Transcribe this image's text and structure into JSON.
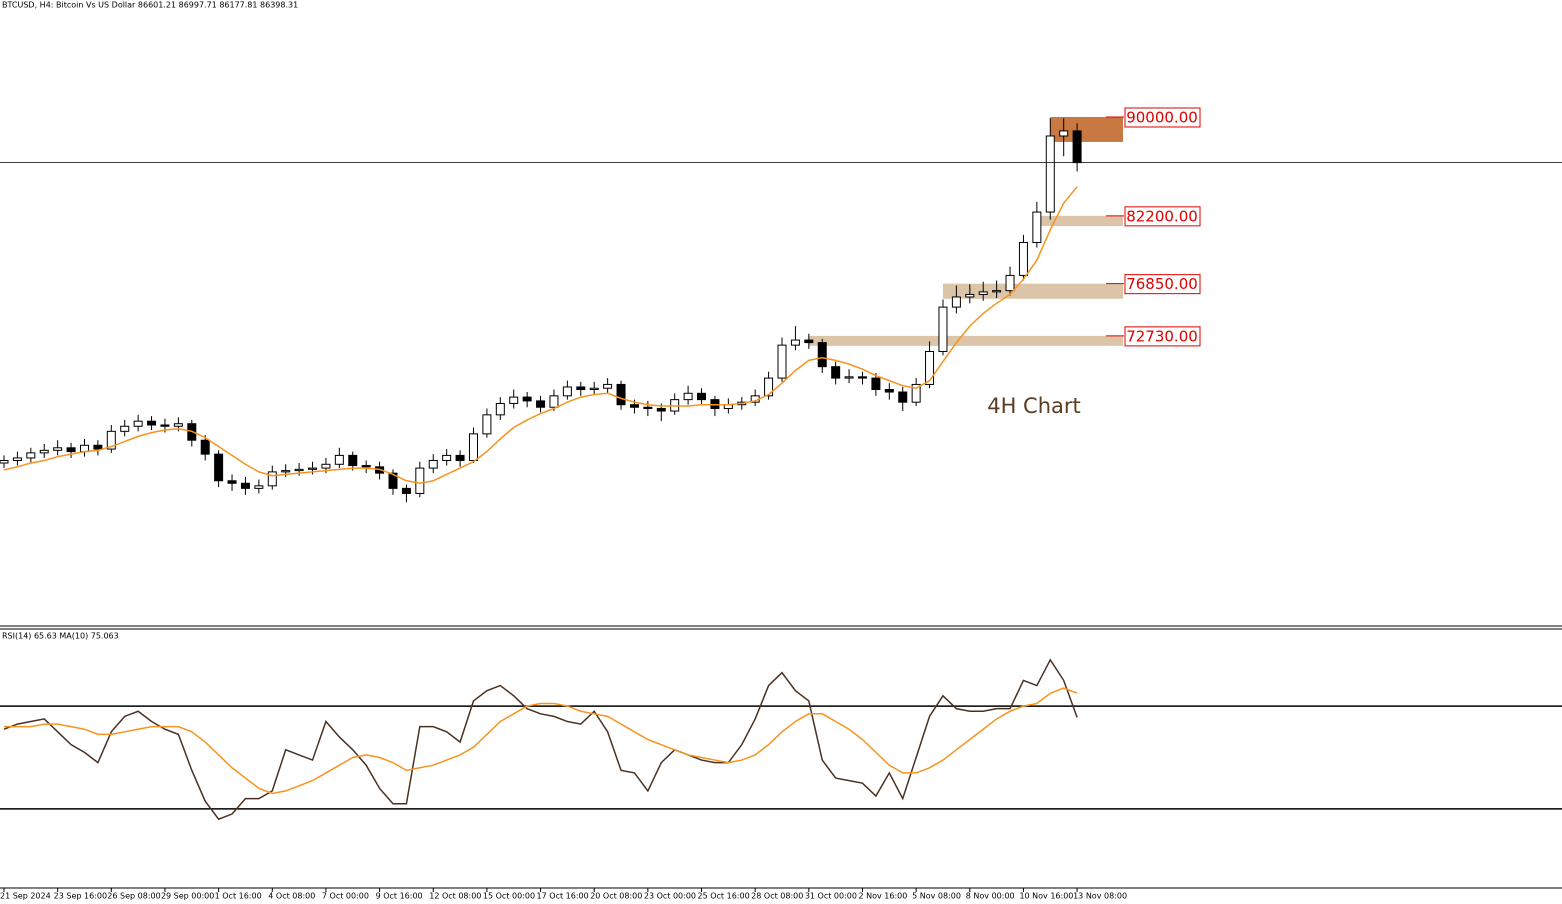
{
  "chart_data": [
    {
      "type": "candlestick",
      "title": "BTCUSD, H4:  Bitcoin Vs US Dollar  86601.21 86997.71 86177.81 86398.31",
      "annotation": "4H Chart",
      "candle_color": "#000000",
      "xlim": [
        0,
        116
      ],
      "xticks": [
        {
          "value": 0,
          "label": "21 Sep 2024"
        },
        {
          "value": 4,
          "label": "23 Sep 16:00"
        },
        {
          "value": 8,
          "label": "26 Sep 08:00"
        },
        {
          "value": 12,
          "label": "29 Sep 00:00"
        },
        {
          "value": 16,
          "label": "1 Oct 16:00"
        },
        {
          "value": 20,
          "label": "4 Oct 08:00"
        },
        {
          "value": 24,
          "label": "7 Oct 00:00"
        },
        {
          "value": 28,
          "label": "9 Oct 16:00"
        },
        {
          "value": 32,
          "label": "12 Oct 08:00"
        },
        {
          "value": 36,
          "label": "15 Oct 00:00"
        },
        {
          "value": 40,
          "label": "17 Oct 16:00"
        },
        {
          "value": 44,
          "label": "20 Oct 08:00"
        },
        {
          "value": 48,
          "label": "23 Oct 00:00"
        },
        {
          "value": 52,
          "label": "25 Oct 16:00"
        },
        {
          "value": 56,
          "label": "28 Oct 08:00"
        },
        {
          "value": 60,
          "label": "31 Oct 00:00"
        },
        {
          "value": 64,
          "label": "2 Nov 16:00"
        },
        {
          "value": 68,
          "label": "5 Nov 08:00"
        },
        {
          "value": 72,
          "label": "8 Nov 00:00"
        },
        {
          "value": 76,
          "label": "10 Nov 16:00"
        },
        {
          "value": 80,
          "label": "13 Nov 08:00"
        }
      ],
      "ylim": [
        49920,
        98440
      ],
      "ohlc": [
        [
          62700,
          63300,
          62300,
          62900
        ],
        [
          62900,
          63600,
          62500,
          63100
        ],
        [
          63100,
          63900,
          62700,
          63500
        ],
        [
          63500,
          64200,
          63100,
          63700
        ],
        [
          63700,
          64500,
          63300,
          63900
        ],
        [
          63900,
          64300,
          63100,
          63600
        ],
        [
          63600,
          64600,
          63200,
          64100
        ],
        [
          64100,
          64500,
          63300,
          63800
        ],
        [
          63800,
          65700,
          63500,
          65200
        ],
        [
          65200,
          66100,
          64800,
          65600
        ],
        [
          65600,
          66500,
          65200,
          66000
        ],
        [
          66000,
          66400,
          65300,
          65700
        ],
        [
          65700,
          66200,
          65100,
          65600
        ],
        [
          65600,
          66300,
          65200,
          65800
        ],
        [
          65800,
          66100,
          64000,
          64500
        ],
        [
          64500,
          64900,
          62900,
          63400
        ],
        [
          63400,
          63700,
          60800,
          61300
        ],
        [
          61300,
          61800,
          60500,
          61100
        ],
        [
          61100,
          61600,
          60200,
          60700
        ],
        [
          60700,
          61400,
          60300,
          60900
        ],
        [
          60900,
          62500,
          60600,
          62000
        ],
        [
          62000,
          62600,
          61600,
          62100
        ],
        [
          62100,
          62700,
          61700,
          62200
        ],
        [
          62200,
          62800,
          61800,
          62300
        ],
        [
          62300,
          63100,
          61900,
          62600
        ],
        [
          62600,
          63900,
          62300,
          63300
        ],
        [
          63300,
          63600,
          62100,
          62500
        ],
        [
          62500,
          62900,
          61900,
          62400
        ],
        [
          62400,
          62800,
          61400,
          61900
        ],
        [
          61900,
          62200,
          60200,
          60700
        ],
        [
          60700,
          61000,
          59600,
          60300
        ],
        [
          60300,
          62800,
          60000,
          62300
        ],
        [
          62300,
          63400,
          61900,
          62900
        ],
        [
          62900,
          63800,
          62500,
          63300
        ],
        [
          63300,
          63700,
          62400,
          62900
        ],
        [
          62900,
          65500,
          62700,
          65000
        ],
        [
          65000,
          67000,
          64700,
          66500
        ],
        [
          66500,
          67900,
          66100,
          67400
        ],
        [
          67400,
          68500,
          67000,
          67900
        ],
        [
          67900,
          68300,
          67100,
          67600
        ],
        [
          67600,
          68000,
          66700,
          67100
        ],
        [
          67100,
          68500,
          66800,
          68000
        ],
        [
          68000,
          69200,
          67700,
          68700
        ],
        [
          68700,
          69100,
          68000,
          68500
        ],
        [
          68500,
          69100,
          68100,
          68600
        ],
        [
          68600,
          69400,
          68200,
          68900
        ],
        [
          68900,
          69200,
          66900,
          67300
        ],
        [
          67300,
          67700,
          66600,
          67100
        ],
        [
          67100,
          67600,
          66400,
          67000
        ],
        [
          67000,
          67400,
          66000,
          66800
        ],
        [
          66800,
          68200,
          66500,
          67700
        ],
        [
          67700,
          68800,
          67300,
          68200
        ],
        [
          68200,
          68600,
          67300,
          67700
        ],
        [
          67700,
          68000,
          66400,
          67000
        ],
        [
          67000,
          67800,
          66600,
          67300
        ],
        [
          67300,
          67900,
          66900,
          67500
        ],
        [
          67500,
          68500,
          67200,
          68000
        ],
        [
          68000,
          69900,
          67700,
          69400
        ],
        [
          69400,
          72600,
          69100,
          72000
        ],
        [
          72000,
          73500,
          71600,
          72400
        ],
        [
          72400,
          72900,
          71700,
          72200
        ],
        [
          72200,
          72500,
          69800,
          70300
        ],
        [
          70300,
          70700,
          68900,
          69400
        ],
        [
          69400,
          70100,
          69000,
          69500
        ],
        [
          69500,
          69900,
          68900,
          69400
        ],
        [
          69400,
          69800,
          68000,
          68500
        ],
        [
          68500,
          69000,
          67700,
          68300
        ],
        [
          68300,
          68700,
          66800,
          67500
        ],
        [
          67500,
          69400,
          67200,
          68900
        ],
        [
          68900,
          72300,
          68600,
          71500
        ],
        [
          71500,
          75600,
          71200,
          75000
        ],
        [
          75000,
          76700,
          74500,
          75800
        ],
        [
          75800,
          76800,
          75300,
          76000
        ],
        [
          76000,
          77000,
          75500,
          76200
        ],
        [
          76200,
          77100,
          75700,
          76300
        ],
        [
          76300,
          78200,
          75900,
          77500
        ],
        [
          77500,
          80700,
          77100,
          80100
        ],
        [
          80100,
          83300,
          79700,
          82500
        ],
        [
          82500,
          89900,
          81900,
          88500
        ],
        [
          88500,
          89900,
          86900,
          88900
        ],
        [
          88900,
          89500,
          85700,
          86400
        ]
      ],
      "ma_color": "#f7931e",
      "ma_values": [
        62150,
        62400,
        62700,
        62900,
        63200,
        63400,
        63600,
        63700,
        64000,
        64400,
        64800,
        65100,
        65300,
        65400,
        65200,
        64700,
        64000,
        63300,
        62600,
        62000,
        61700,
        61800,
        61900,
        62000,
        62100,
        62200,
        62300,
        62300,
        62200,
        61800,
        61300,
        61100,
        61300,
        61800,
        62300,
        62800,
        63600,
        64600,
        65500,
        66100,
        66600,
        67000,
        67500,
        67900,
        68100,
        68200,
        67800,
        67500,
        67300,
        67200,
        67200,
        67200,
        67300,
        67300,
        67300,
        67400,
        67600,
        68100,
        69000,
        70000,
        70800,
        71000,
        70800,
        70500,
        70100,
        69600,
        69200,
        68800,
        68600,
        69200,
        70700,
        72200,
        73500,
        74500,
        75300,
        76000,
        77200,
        78700,
        81100,
        83200,
        84500
      ],
      "levels": [
        {
          "value": 90000,
          "label": "90000.00",
          "low": 88030,
          "start": 78,
          "color": "#c87941"
        },
        {
          "value": 82200,
          "label": "82200.00",
          "low": 81400,
          "start": 77,
          "color": "#dcc4a8"
        },
        {
          "value": 76850,
          "label": "76850.00",
          "low": 75660,
          "start": 70,
          "color": "#dcc4a8"
        },
        {
          "value": 72730,
          "label": "72730.00",
          "low": 71940,
          "start": 60,
          "color": "#dcc4a8"
        }
      ],
      "level_color": "#e00000"
    },
    {
      "type": "line",
      "title": "RSI(14) 65.63 MA(10) 75.063",
      "xlim": [
        0,
        116
      ],
      "ylim": [
        0,
        100
      ],
      "levels": [
        30,
        70
      ],
      "series": [
        {
          "color": "#4a3222",
          "values": [
            61,
            63,
            64,
            65,
            60,
            55,
            52,
            48,
            60,
            66,
            68,
            64,
            61,
            59,
            45,
            33,
            26,
            28,
            34,
            34,
            37,
            53,
            51,
            49,
            64,
            58,
            53,
            47,
            38,
            32,
            32,
            62,
            62,
            60,
            56,
            72,
            76,
            78,
            74,
            69,
            67,
            66,
            64,
            63,
            68,
            60,
            45,
            44,
            37,
            48,
            53,
            51,
            49,
            48,
            48,
            55,
            65,
            78,
            83,
            76,
            72,
            49,
            42,
            41,
            40,
            35,
            44,
            34,
            50,
            66,
            74,
            69,
            68,
            68,
            69,
            69,
            80,
            78,
            88,
            80,
            65.63
          ]
        },
        {
          "color": "#f7931e",
          "values": [
            62,
            62,
            62,
            63,
            63,
            62,
            61,
            59,
            59,
            60,
            61,
            62,
            62,
            62,
            60,
            56,
            51,
            46,
            42,
            38,
            36,
            37,
            39,
            41,
            44,
            47,
            50,
            51,
            50,
            48,
            45,
            46,
            47,
            49,
            51,
            54,
            59,
            64,
            67,
            70,
            71,
            71,
            70,
            68,
            67,
            66,
            63,
            60,
            57,
            55,
            53,
            51,
            50,
            49,
            48,
            49,
            51,
            55,
            60,
            64,
            67,
            67,
            64,
            61,
            57,
            52,
            47,
            44,
            44,
            46,
            49,
            53,
            57,
            61,
            65,
            68,
            70,
            71,
            75,
            77,
            75.063
          ]
        }
      ]
    }
  ]
}
